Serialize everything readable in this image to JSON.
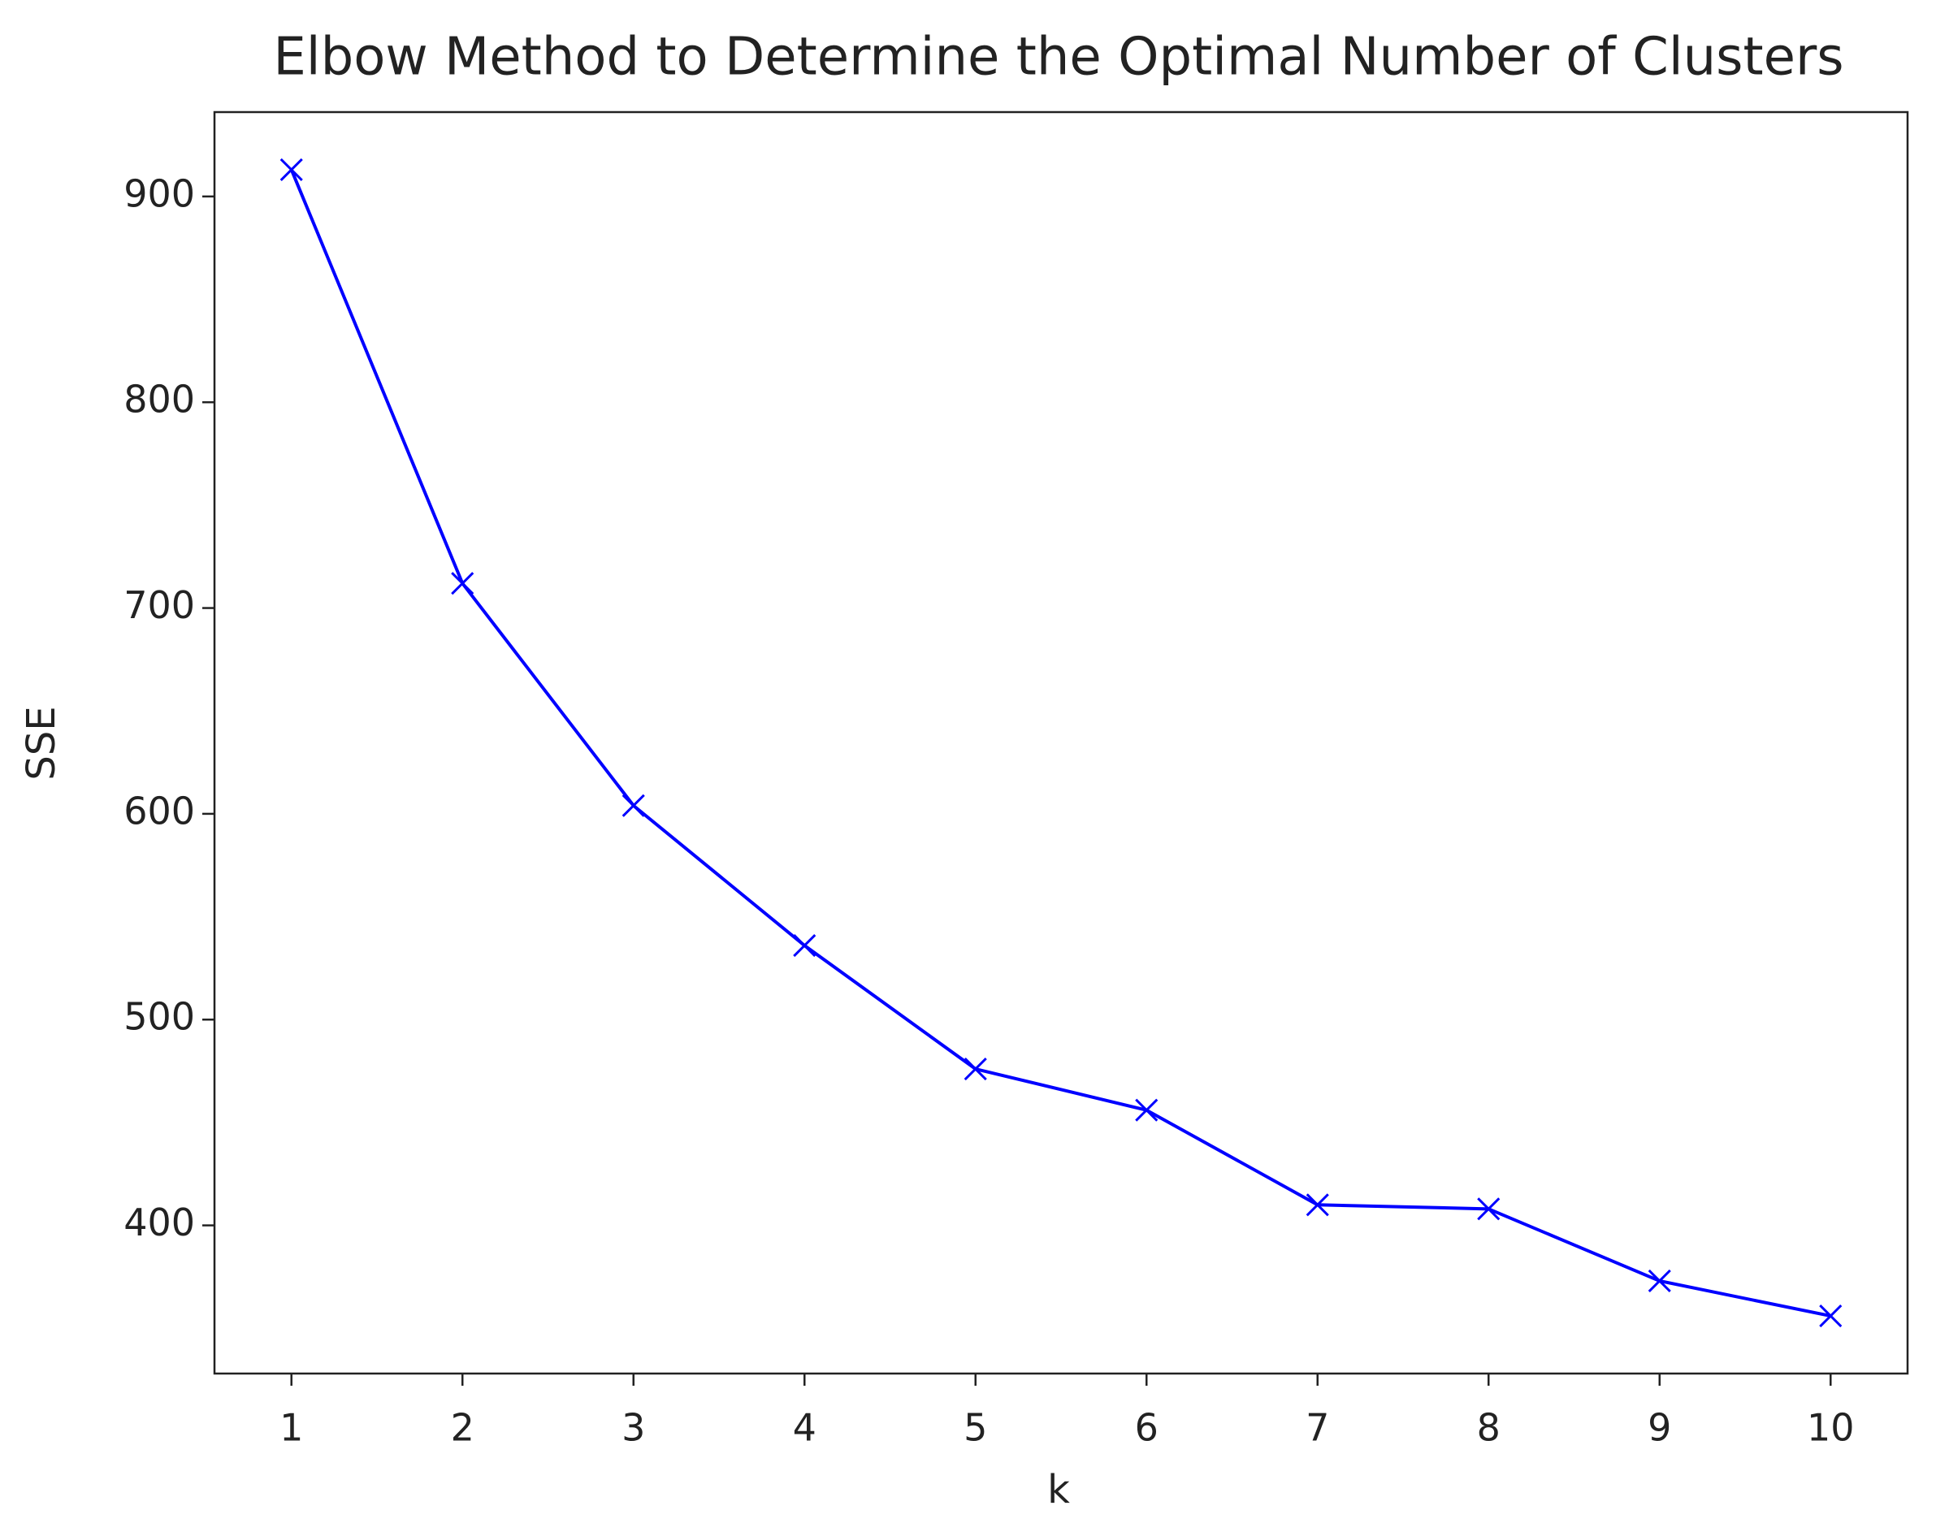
{
  "chart_data": {
    "type": "line",
    "title": "Elbow Method to Determine the Optimal Number of Clusters",
    "x_label": "k",
    "y_label": "SSE",
    "x": [
      1,
      2,
      3,
      4,
      5,
      6,
      7,
      8,
      9,
      10
    ],
    "series": [
      {
        "name": "SSE",
        "color": "#0000ff",
        "marker": "x",
        "values": [
          913,
          712,
          604,
          536,
          476,
          456,
          410,
          408,
          373,
          356
        ]
      }
    ],
    "xlim": [
      0.55,
      10.45
    ],
    "xticks": [
      1,
      2,
      3,
      4,
      5,
      6,
      7,
      8,
      9,
      10
    ],
    "ylim": [
      328,
      941
    ],
    "yticks": [
      400,
      500,
      600,
      700,
      800,
      900
    ],
    "grid": false,
    "legend": false
  }
}
